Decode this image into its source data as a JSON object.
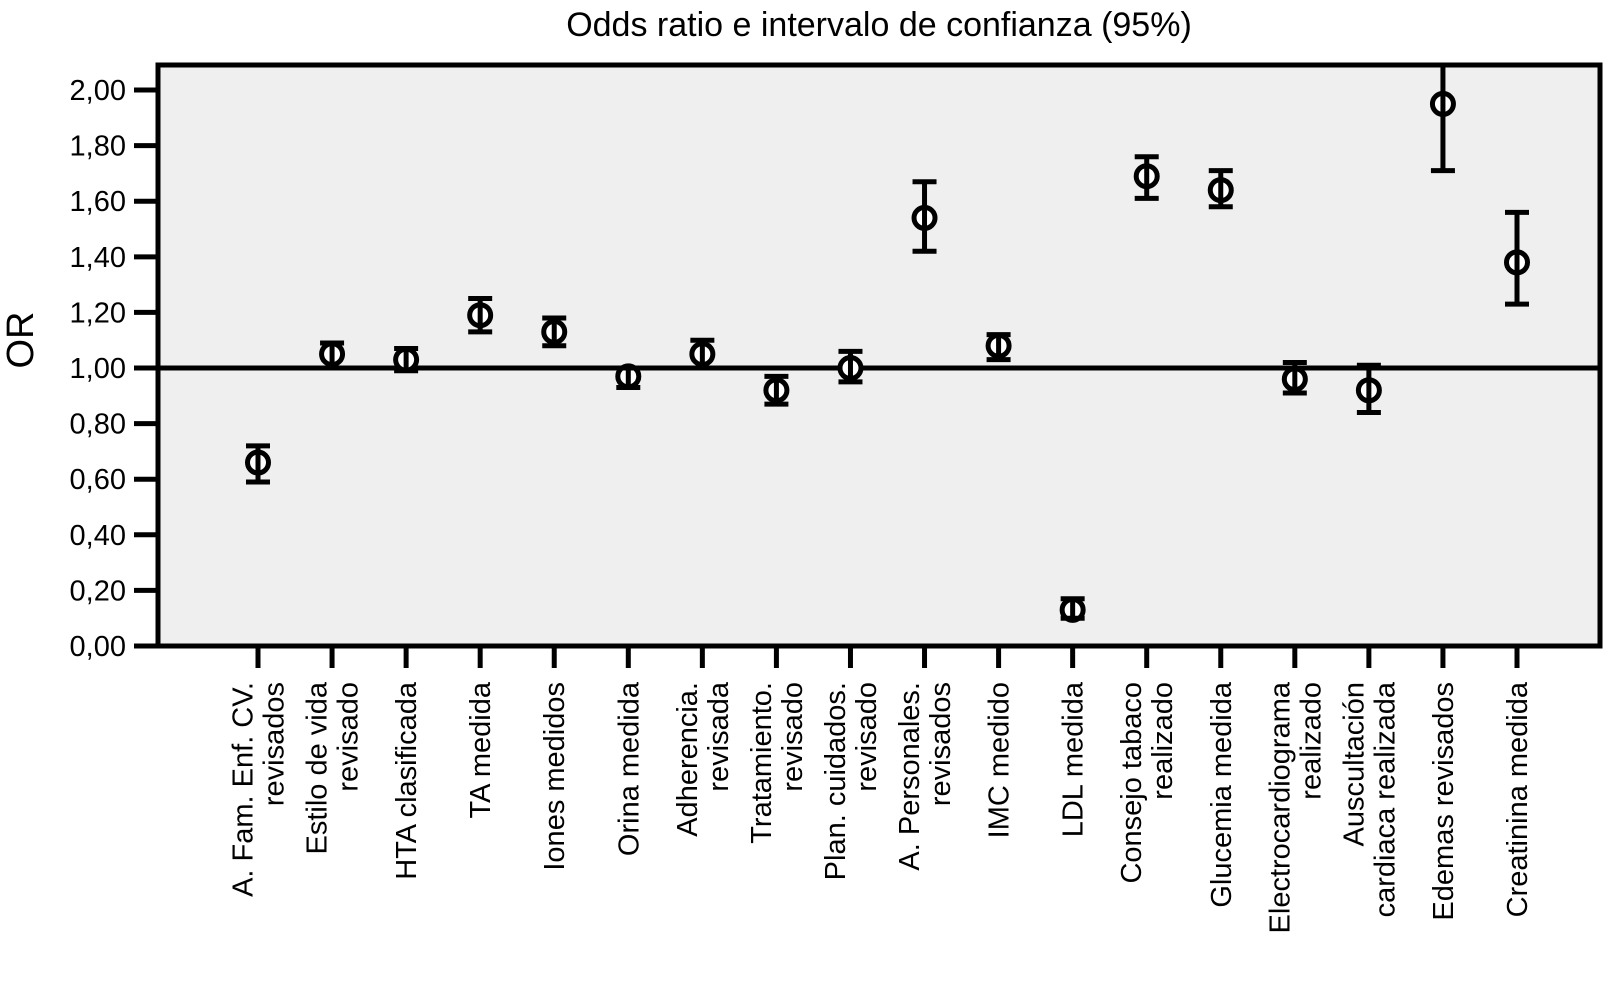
{
  "chart_data": {
    "type": "scatter",
    "title": "Odds ratio e intervalo de confianza (95%)",
    "ylabel": "OR",
    "xlabel": "",
    "ylim": [
      0.0,
      2.09
    ],
    "ref_line": 1.0,
    "grid": false,
    "legend_position": "none",
    "error_bars": "95% CI",
    "ytick_values": [
      0.0,
      0.2,
      0.4,
      0.6,
      0.8,
      1.0,
      1.2,
      1.4,
      1.6,
      1.8,
      2.0
    ],
    "ytick_labels": [
      "0,00",
      "0,20",
      "0,40",
      "0,60",
      "0,80",
      "1,00",
      "1,20",
      "1,40",
      "1,60",
      "1,80",
      "2,00"
    ],
    "colors": {
      "plot_background": "#efefef",
      "outer_background": "#ffffff",
      "stroke": "#000000",
      "marker_fill": "#ffffff"
    },
    "points": [
      {
        "label": "A. Fam. Enf. CV. revisados",
        "label_lines": [
          "A. Fam. Enf. CV.",
          "revisados"
        ],
        "or": 0.66,
        "ci_low": 0.59,
        "ci_high": 0.72
      },
      {
        "label": "Estilo de vida revisado",
        "label_lines": [
          "Estilo de vida",
          "revisado"
        ],
        "or": 1.05,
        "ci_low": 1.0,
        "ci_high": 1.09
      },
      {
        "label": "HTA clasificada",
        "label_lines": [
          "HTA clasificada"
        ],
        "or": 1.03,
        "ci_low": 0.99,
        "ci_high": 1.07
      },
      {
        "label": "TA medida",
        "label_lines": [
          "TA medida"
        ],
        "or": 1.19,
        "ci_low": 1.13,
        "ci_high": 1.25
      },
      {
        "label": "Iones medidos",
        "label_lines": [
          "Iones medidos"
        ],
        "or": 1.13,
        "ci_low": 1.08,
        "ci_high": 1.18
      },
      {
        "label": "Orina medida",
        "label_lines": [
          "Orina medida"
        ],
        "or": 0.97,
        "ci_low": 0.93,
        "ci_high": 1.0
      },
      {
        "label": "Adherencia. revisada",
        "label_lines": [
          "Adherencia.",
          "revisada"
        ],
        "or": 1.05,
        "ci_low": 1.0,
        "ci_high": 1.1
      },
      {
        "label": "Tratamiento. revisado",
        "label_lines": [
          "Tratamiento.",
          "revisado"
        ],
        "or": 0.92,
        "ci_low": 0.87,
        "ci_high": 0.97
      },
      {
        "label": "Plan. cuidados. revisado",
        "label_lines": [
          "Plan. cuidados.",
          "revisado"
        ],
        "or": 1.0,
        "ci_low": 0.95,
        "ci_high": 1.06
      },
      {
        "label": "A. Personales. revisados",
        "label_lines": [
          "A. Personales.",
          "revisados"
        ],
        "or": 1.54,
        "ci_low": 1.42,
        "ci_high": 1.67
      },
      {
        "label": "IMC medido",
        "label_lines": [
          "IMC medido"
        ],
        "or": 1.08,
        "ci_low": 1.03,
        "ci_high": 1.12
      },
      {
        "label": "LDL medida",
        "label_lines": [
          "LDL medida"
        ],
        "or": 0.13,
        "ci_low": 0.1,
        "ci_high": 0.17
      },
      {
        "label": "Consejo tabaco realizado",
        "label_lines": [
          "Consejo tabaco",
          "realizado"
        ],
        "or": 1.69,
        "ci_low": 1.61,
        "ci_high": 1.76
      },
      {
        "label": "Glucemia medida",
        "label_lines": [
          "Glucemia medida"
        ],
        "or": 1.64,
        "ci_low": 1.58,
        "ci_high": 1.71
      },
      {
        "label": "Electrocardiograma realizado",
        "label_lines": [
          "Electrocardiograma",
          "realizado"
        ],
        "or": 0.96,
        "ci_low": 0.91,
        "ci_high": 1.02
      },
      {
        "label": "Auscultación cardiaca realizada",
        "label_lines": [
          "Auscultación",
          "cardiaca realizada"
        ],
        "or": 0.92,
        "ci_low": 0.84,
        "ci_high": 1.01
      },
      {
        "label": "Edemas revisados",
        "label_lines": [
          "Edemas revisados"
        ],
        "or": 1.95,
        "ci_low": 1.71,
        "ci_high": 2.18
      },
      {
        "label": "Creatinina medida",
        "label_lines": [
          "Creatinina medida"
        ],
        "or": 1.38,
        "ci_low": 1.23,
        "ci_high": 1.56
      }
    ]
  }
}
